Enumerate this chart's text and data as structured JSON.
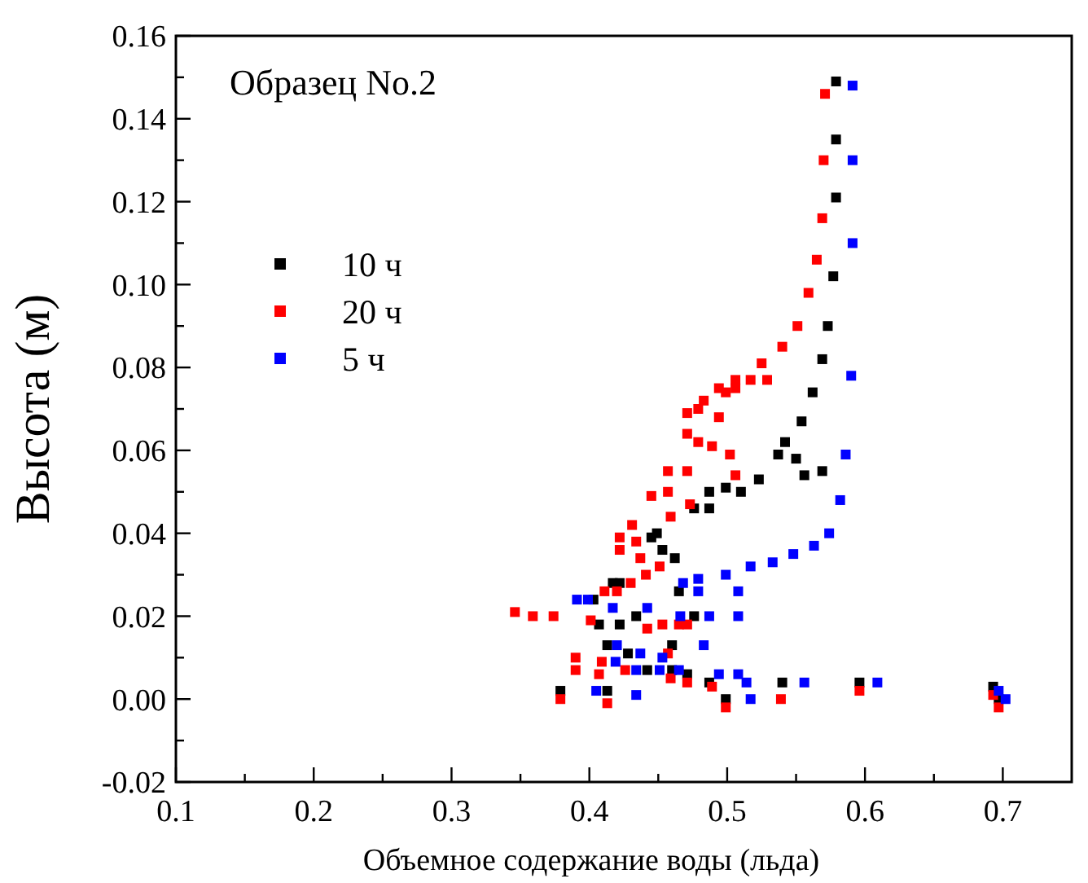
{
  "chart_data": {
    "type": "scatter",
    "xlabel": "Объемное содержание воды (льда)",
    "ylabel": "Высота (м)",
    "annotations": [
      "Образец No.2"
    ],
    "marker": "square",
    "legend": "top left",
    "grid": false,
    "xlim": [
      0.1,
      0.75
    ],
    "ylim": [
      -0.02,
      0.16
    ],
    "xticks": [
      0.1,
      {
        "value": 0.15,
        "label": null
      },
      0.2,
      {
        "value": 0.25,
        "label": null
      },
      0.3,
      {
        "value": 0.35,
        "label": null
      },
      0.4,
      {
        "value": 0.45,
        "label": null
      },
      0.5,
      {
        "value": 0.55,
        "label": null
      },
      0.6,
      {
        "value": 0.65,
        "label": null
      },
      0.7
    ],
    "yticks": [
      -0.02,
      {
        "value": -0.01,
        "label": null
      },
      {
        "value": 0,
        "label": "0.00"
      },
      {
        "value": 0.01,
        "label": null
      },
      0.02,
      {
        "value": 0.03,
        "label": null
      },
      0.04,
      {
        "value": 0.05,
        "label": null
      },
      0.06,
      {
        "value": 0.07,
        "label": null
      },
      0.08,
      {
        "value": 0.09,
        "label": null
      },
      {
        "value": 0.1,
        "label": "0.10"
      },
      {
        "value": 0.11,
        "label": null
      },
      0.12,
      {
        "value": 0.13,
        "label": null
      },
      0.14,
      {
        "value": 0.15,
        "label": null
      },
      0.16
    ],
    "series": [
      {
        "name": "10 ч",
        "color": "#000000",
        "x": [
          0.579,
          0.579,
          0.579,
          0.577,
          0.573,
          0.569,
          0.562,
          0.554,
          0.542,
          0.537,
          0.55,
          0.556,
          0.569,
          0.523,
          0.51,
          0.499,
          0.487,
          0.487,
          0.476,
          0.449,
          0.453,
          0.462,
          0.445,
          0.422,
          0.417,
          0.403,
          0.465,
          0.434,
          0.407,
          0.422,
          0.476,
          0.413,
          0.428,
          0.46,
          0.442,
          0.46,
          0.471,
          0.487,
          0.379,
          0.413,
          0.499,
          0.54,
          0.596,
          0.693,
          0.697
        ],
        "values": [
          0.149,
          0.135,
          0.121,
          0.102,
          0.09,
          0.082,
          0.074,
          0.067,
          0.062,
          0.059,
          0.058,
          0.054,
          0.055,
          0.053,
          0.05,
          0.051,
          0.05,
          0.046,
          0.046,
          0.04,
          0.036,
          0.034,
          0.039,
          0.028,
          0.028,
          0.024,
          0.026,
          0.02,
          0.018,
          0.018,
          0.02,
          0.013,
          0.011,
          0.013,
          0.007,
          0.007,
          0.006,
          0.004,
          0.002,
          0.002,
          0.0,
          0.004,
          0.004,
          0.003,
          0.0
        ]
      },
      {
        "name": "20 ч",
        "color": "#ff0000",
        "x": [
          0.571,
          0.57,
          0.569,
          0.565,
          0.559,
          0.551,
          0.54,
          0.525,
          0.517,
          0.529,
          0.506,
          0.499,
          0.483,
          0.506,
          0.494,
          0.471,
          0.479,
          0.494,
          0.471,
          0.479,
          0.489,
          0.502,
          0.506,
          0.457,
          0.471,
          0.445,
          0.457,
          0.473,
          0.459,
          0.431,
          0.422,
          0.434,
          0.422,
          0.437,
          0.451,
          0.441,
          0.43,
          0.42,
          0.411,
          0.346,
          0.359,
          0.374,
          0.401,
          0.442,
          0.453,
          0.465,
          0.471,
          0.39,
          0.39,
          0.409,
          0.407,
          0.457,
          0.426,
          0.459,
          0.471,
          0.489,
          0.379,
          0.413,
          0.499,
          0.539,
          0.596,
          0.693,
          0.697
        ],
        "values": [
          0.146,
          0.13,
          0.116,
          0.106,
          0.098,
          0.09,
          0.085,
          0.081,
          0.077,
          0.077,
          0.077,
          0.074,
          0.072,
          0.075,
          0.075,
          0.069,
          0.07,
          0.068,
          0.064,
          0.062,
          0.061,
          0.059,
          0.054,
          0.055,
          0.055,
          0.049,
          0.05,
          0.047,
          0.044,
          0.042,
          0.039,
          0.038,
          0.036,
          0.034,
          0.032,
          0.03,
          0.028,
          0.026,
          0.026,
          0.021,
          0.02,
          0.02,
          0.019,
          0.017,
          0.018,
          0.018,
          0.018,
          0.01,
          0.007,
          0.009,
          0.006,
          0.011,
          0.007,
          0.005,
          0.004,
          0.003,
          0.0,
          -0.001,
          -0.002,
          0.0,
          0.002,
          0.001,
          -0.002
        ]
      },
      {
        "name": "5 ч",
        "color": "#0000ff",
        "x": [
          0.591,
          0.591,
          0.591,
          0.59,
          0.586,
          0.582,
          0.574,
          0.563,
          0.548,
          0.533,
          0.517,
          0.499,
          0.479,
          0.468,
          0.479,
          0.508,
          0.391,
          0.399,
          0.417,
          0.442,
          0.466,
          0.487,
          0.508,
          0.42,
          0.483,
          0.437,
          0.419,
          0.453,
          0.434,
          0.451,
          0.465,
          0.494,
          0.508,
          0.514,
          0.405,
          0.434,
          0.517,
          0.556,
          0.609,
          0.697,
          0.702
        ],
        "values": [
          0.148,
          0.13,
          0.11,
          0.078,
          0.059,
          0.048,
          0.04,
          0.037,
          0.035,
          0.033,
          0.032,
          0.03,
          0.029,
          0.028,
          0.026,
          0.026,
          0.024,
          0.024,
          0.022,
          0.022,
          0.02,
          0.02,
          0.02,
          0.013,
          0.013,
          0.011,
          0.009,
          0.01,
          0.007,
          0.007,
          0.007,
          0.006,
          0.006,
          0.004,
          0.002,
          0.001,
          0.0,
          0.004,
          0.004,
          0.002,
          0.0
        ]
      }
    ]
  }
}
